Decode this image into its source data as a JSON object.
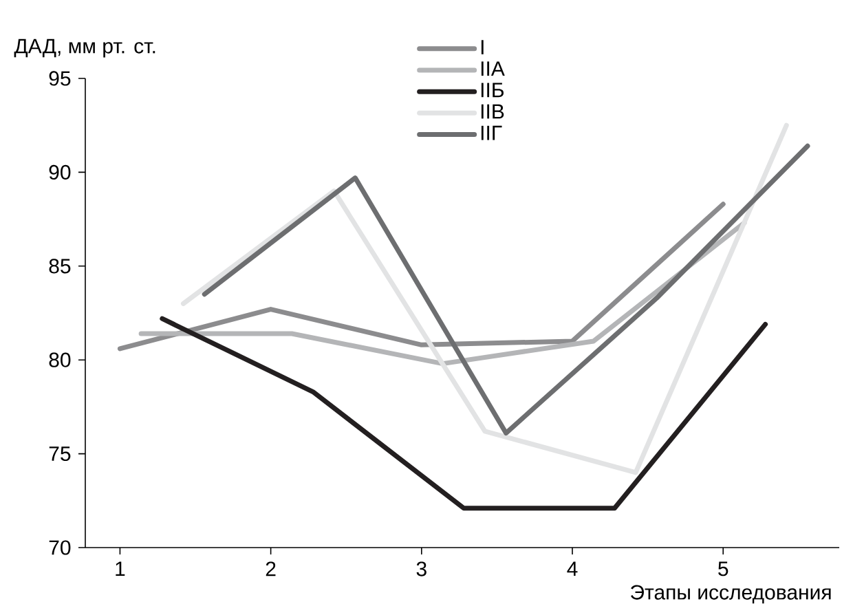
{
  "chart_data": {
    "type": "line",
    "xlabel": "Этапы исследования",
    "ylabel": "ДАД, мм рт. ст.",
    "xlim": [
      0.77,
      5.77
    ],
    "xticks": [
      1,
      2,
      3,
      4,
      5
    ],
    "ylim": [
      70,
      95
    ],
    "yticks": [
      70,
      75,
      80,
      85,
      90,
      95
    ],
    "legend": "top",
    "grid": false,
    "marker": "none",
    "line_style": "solid",
    "series": [
      {
        "name": "I",
        "color": "#8c8c8e",
        "x": [
          1,
          2,
          3,
          4,
          5
        ],
        "values": [
          80.6,
          82.7,
          80.8,
          81.0,
          88.3
        ]
      },
      {
        "name": "IIA",
        "color": "#b4b5b7",
        "x": [
          1.14,
          2.14,
          3.14,
          4.14,
          5.14
        ],
        "values": [
          81.4,
          81.4,
          79.8,
          81.0,
          87.3
        ]
      },
      {
        "name": "IIБ",
        "color": "#231f20",
        "x": [
          1.28,
          2.28,
          3.28,
          4.28,
          5.28
        ],
        "values": [
          82.2,
          78.3,
          72.1,
          72.1,
          81.9
        ]
      },
      {
        "name": "IIВ",
        "color": "#e2e3e4",
        "x": [
          1.42,
          2.42,
          3.42,
          4.42,
          5.42
        ],
        "values": [
          83.0,
          89.0,
          76.2,
          74.0,
          92.5
        ]
      },
      {
        "name": "IIГ",
        "color": "#6d6e70",
        "x": [
          1.56,
          2.56,
          3.56,
          4.56,
          5.56
        ],
        "values": [
          83.5,
          89.7,
          76.1,
          83.3,
          91.4
        ]
      }
    ]
  }
}
